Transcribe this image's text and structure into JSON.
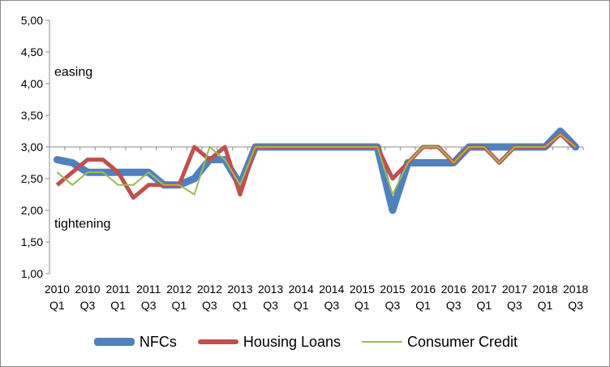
{
  "chart_data": {
    "type": "line",
    "title": "",
    "xlabel": "",
    "ylabel": "",
    "ylim": [
      1.0,
      5.0
    ],
    "yticks": [
      "1,00",
      "1,50",
      "2,00",
      "2,50",
      "3,00",
      "3,50",
      "4,00",
      "4,50",
      "5,00"
    ],
    "grid": false,
    "legend_position": "bottom",
    "x_tick_labels": [
      {
        "year": "2010",
        "q": "Q1"
      },
      {
        "year": "2010",
        "q": "Q3"
      },
      {
        "year": "2011",
        "q": "Q1"
      },
      {
        "year": "2011",
        "q": "Q3"
      },
      {
        "year": "2012",
        "q": "Q1"
      },
      {
        "year": "2012",
        "q": "Q3"
      },
      {
        "year": "2013",
        "q": "Q1"
      },
      {
        "year": "2013",
        "q": "Q3"
      },
      {
        "year": "2014",
        "q": "Q1"
      },
      {
        "year": "2014",
        "q": "Q3"
      },
      {
        "year": "2015",
        "q": "Q1"
      },
      {
        "year": "2015",
        "q": "Q3"
      },
      {
        "year": "2016",
        "q": "Q1"
      },
      {
        "year": "2016",
        "q": "Q3"
      },
      {
        "year": "2017",
        "q": "Q1"
      },
      {
        "year": "2017",
        "q": "Q3"
      },
      {
        "year": "2018",
        "q": "Q1"
      },
      {
        "year": "2018",
        "q": "Q3"
      }
    ],
    "categories": [
      "2010 Q1",
      "2010 Q2",
      "2010 Q3",
      "2010 Q4",
      "2011 Q1",
      "2011 Q2",
      "2011 Q3",
      "2011 Q4",
      "2012 Q1",
      "2012 Q2",
      "2012 Q3",
      "2012 Q4",
      "2013 Q1",
      "2013 Q2",
      "2013 Q3",
      "2013 Q4",
      "2014 Q1",
      "2014 Q2",
      "2014 Q3",
      "2014 Q4",
      "2015 Q1",
      "2015 Q2",
      "2015 Q3",
      "2015 Q4",
      "2016 Q1",
      "2016 Q2",
      "2016 Q3",
      "2016 Q4",
      "2017 Q1",
      "2017 Q2",
      "2017 Q3",
      "2017 Q4",
      "2018 Q1",
      "2018 Q2",
      "2018 Q3"
    ],
    "series": [
      {
        "name": "NFCs",
        "color": "#4f81bd",
        "values": [
          2.8,
          2.75,
          2.6,
          2.6,
          2.6,
          2.6,
          2.6,
          2.4,
          2.4,
          2.5,
          2.8,
          2.8,
          2.4,
          3.0,
          3.0,
          3.0,
          3.0,
          3.0,
          3.0,
          3.0,
          3.0,
          3.0,
          2.0,
          2.75,
          2.75,
          2.75,
          2.75,
          3.0,
          3.0,
          3.0,
          3.0,
          3.0,
          3.0,
          3.25,
          3.0
        ]
      },
      {
        "name": "Housing Loans",
        "color": "#c0504d",
        "values": [
          2.4,
          2.6,
          2.8,
          2.8,
          2.6,
          2.2,
          2.4,
          2.4,
          2.4,
          3.0,
          2.8,
          3.0,
          2.25,
          3.0,
          3.0,
          3.0,
          3.0,
          3.0,
          3.0,
          3.0,
          3.0,
          3.0,
          2.5,
          2.75,
          3.0,
          3.0,
          2.75,
          3.0,
          3.0,
          2.75,
          3.0,
          3.0,
          3.0,
          3.2,
          3.0
        ]
      },
      {
        "name": "Consumer Credit",
        "color": "#9bbb59",
        "values": [
          2.6,
          2.4,
          2.6,
          2.6,
          2.4,
          2.4,
          2.6,
          2.4,
          2.4,
          2.25,
          3.0,
          2.8,
          2.4,
          3.0,
          3.0,
          3.0,
          3.0,
          3.0,
          3.0,
          3.0,
          3.0,
          3.0,
          2.25,
          2.75,
          3.0,
          3.0,
          2.75,
          3.0,
          3.0,
          2.75,
          3.0,
          3.0,
          3.0,
          3.2,
          3.0
        ]
      }
    ],
    "annotations": [
      {
        "text": "easing",
        "y": 4.2
      },
      {
        "text": "tightening",
        "y": 1.8
      }
    ]
  }
}
